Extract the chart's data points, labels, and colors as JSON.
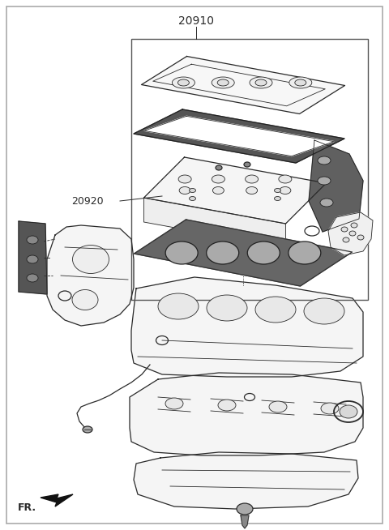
{
  "title_label": "20910",
  "label_20920": "20920",
  "label_FR": "FR.",
  "bg_color": "#ffffff",
  "lc": "#2a2a2a",
  "border_color": "#999999",
  "box_color": "#555555",
  "gasket_dark": "#444444",
  "gasket_fill": "#e8e8e8",
  "part_fill": "#f8f8f8",
  "part_edge": "#333333"
}
